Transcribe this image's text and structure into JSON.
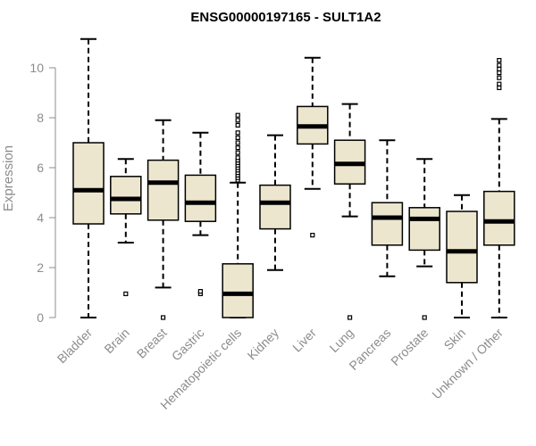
{
  "chart_data": {
    "type": "boxplot",
    "title": "ENSG00000197165 - SULT1A2",
    "xlabel": "",
    "ylabel": "Expression",
    "ylim": [
      0,
      11.2
    ],
    "yticks": [
      0,
      2,
      4,
      6,
      8,
      10
    ],
    "box_fill": "#ede6cf",
    "categories": [
      "Bladder",
      "Brain",
      "Breast",
      "Gastric",
      "Hematopoietic cells",
      "Kidney",
      "Liver",
      "Lung",
      "Pancreas",
      "Prostate",
      "Skin",
      "Unknown / Other"
    ],
    "boxes": [
      {
        "min": 0.0,
        "q1": 3.75,
        "median": 5.1,
        "q3": 7.0,
        "max": 11.15,
        "outliers": []
      },
      {
        "min": 3.0,
        "q1": 4.15,
        "median": 4.75,
        "q3": 5.65,
        "max": 6.35,
        "outliers": [
          0.95
        ]
      },
      {
        "min": 1.2,
        "q1": 3.9,
        "median": 5.4,
        "q3": 6.3,
        "max": 7.9,
        "outliers": [
          0.0
        ]
      },
      {
        "min": 3.3,
        "q1": 3.85,
        "median": 4.6,
        "q3": 5.7,
        "max": 7.4,
        "outliers": [
          0.95,
          1.05
        ]
      },
      {
        "min": 0.0,
        "q1": 0.0,
        "median": 0.95,
        "q3": 2.15,
        "max": 5.4,
        "outliers": [
          5.5,
          5.6,
          5.7,
          5.8,
          5.9,
          6.0,
          6.1,
          6.2,
          6.3,
          6.4,
          6.6,
          6.8,
          7.0,
          7.2,
          7.4,
          7.7,
          7.9,
          8.1
        ]
      },
      {
        "min": 1.9,
        "q1": 3.55,
        "median": 4.6,
        "q3": 5.3,
        "max": 7.3,
        "outliers": []
      },
      {
        "min": 5.15,
        "q1": 6.95,
        "median": 7.65,
        "q3": 8.45,
        "max": 10.4,
        "outliers": [
          3.3
        ]
      },
      {
        "min": 4.05,
        "q1": 5.35,
        "median": 6.15,
        "q3": 7.1,
        "max": 8.55,
        "outliers": [
          0.0
        ]
      },
      {
        "min": 1.65,
        "q1": 2.9,
        "median": 4.0,
        "q3": 4.6,
        "max": 7.1,
        "outliers": []
      },
      {
        "min": 2.05,
        "q1": 2.7,
        "median": 3.95,
        "q3": 4.4,
        "max": 6.35,
        "outliers": [
          0.0
        ]
      },
      {
        "min": 0.0,
        "q1": 1.4,
        "median": 2.65,
        "q3": 4.25,
        "max": 4.9,
        "outliers": []
      },
      {
        "min": 0.0,
        "q1": 2.9,
        "median": 3.85,
        "q3": 5.05,
        "max": 7.95,
        "outliers": [
          9.2,
          9.35,
          9.6,
          9.8,
          9.95,
          10.1,
          10.3
        ]
      }
    ]
  }
}
